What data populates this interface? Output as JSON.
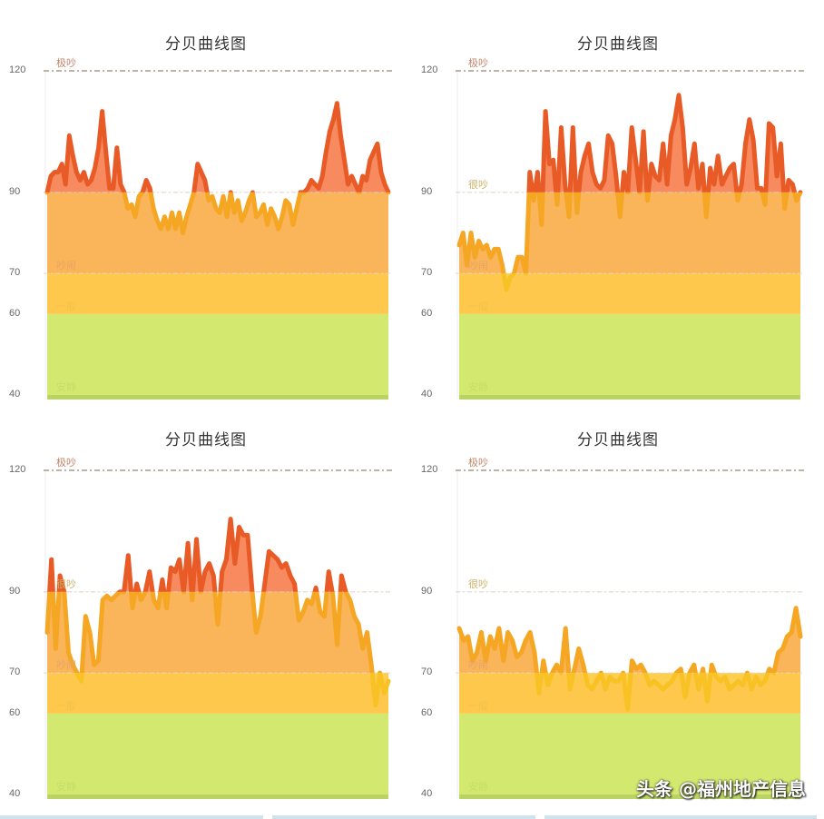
{
  "colors": {
    "zone_quiet": "#d2e86e",
    "zone_quiet_base": "#b9d464",
    "zone_normal": "#fece4e",
    "zone_noisy": "#fab45a",
    "zone_very_noisy_fill": "#f78a5e",
    "line_over90": "#e85a26",
    "line_70_90": "#f5a623",
    "line_under70": "#f8c224",
    "label_extreme": "#c0876c",
    "label_very": "#c9b16a",
    "label_noisy": "#e8a564",
    "label_normal": "#f0c24c",
    "label_quiet": "#c7de6a"
  },
  "zone_labels": {
    "extreme": "极吵",
    "very": "很吵",
    "noisy": "吵闹",
    "normal": "一般",
    "quiet": "安静"
  },
  "y_ticks": [
    "120",
    "90",
    "70",
    "60",
    "40"
  ],
  "watermark": "头条 @福州地产信息",
  "chart_data": [
    {
      "type": "area",
      "title": "分贝曲线图",
      "ylim": [
        38,
        120
      ],
      "y_ticks": [
        120,
        90,
        70,
        60,
        40
      ],
      "bands": [
        {
          "name": "安静",
          "from": 38,
          "to": 60
        },
        {
          "name": "一般",
          "from": 60,
          "to": 70
        },
        {
          "name": "吵闹",
          "from": 70,
          "to": 90
        },
        {
          "name": "很吵",
          "from": 90,
          "to": 120
        },
        {
          "name": "极吵",
          "from": 120,
          "to": 120
        }
      ],
      "values": [
        90,
        94,
        95,
        95,
        97,
        92,
        104,
        99,
        95,
        93,
        95,
        92,
        93,
        96,
        101,
        110,
        100,
        91,
        91,
        101,
        92,
        90,
        86,
        87,
        84,
        89,
        90,
        93,
        91,
        86,
        83,
        81,
        84,
        81,
        85,
        81,
        85,
        80,
        84,
        87,
        90,
        97,
        95,
        93,
        88,
        89,
        86,
        85,
        89,
        84,
        90,
        85,
        88,
        83,
        85,
        88,
        90,
        84,
        85,
        87,
        82,
        86,
        84,
        81,
        84,
        88,
        87,
        82,
        86,
        90,
        90,
        91,
        93,
        92,
        91,
        94,
        100,
        105,
        108,
        112,
        104,
        98,
        92,
        94,
        92,
        90,
        94,
        93,
        98,
        100,
        102,
        95,
        92,
        90
      ]
    },
    {
      "type": "area",
      "title": "分贝曲线图",
      "ylim": [
        38,
        120
      ],
      "y_ticks": [
        120,
        90,
        70,
        60,
        40
      ],
      "values": [
        77,
        80,
        72,
        80,
        74,
        78,
        76,
        77,
        74,
        76,
        76,
        72,
        66,
        69,
        70,
        74,
        74,
        70,
        95,
        88,
        95,
        82,
        110,
        97,
        98,
        87,
        106,
        92,
        84,
        106,
        85,
        95,
        99,
        102,
        95,
        92,
        91,
        93,
        104,
        102,
        94,
        84,
        95,
        90,
        106,
        98,
        90,
        105,
        88,
        97,
        94,
        93,
        102,
        92,
        104,
        108,
        114,
        106,
        92,
        96,
        102,
        91,
        97,
        84,
        96,
        92,
        99,
        92,
        94,
        96,
        97,
        88,
        92,
        102,
        108,
        103,
        91,
        91,
        87,
        107,
        106,
        94,
        102,
        86,
        93,
        92,
        88,
        90
      ]
    },
    {
      "type": "area",
      "title": "分贝曲线图",
      "ylim": [
        38,
        120
      ],
      "y_ticks": [
        120,
        90,
        70,
        60,
        40
      ],
      "values": [
        80,
        98,
        76,
        94,
        90,
        75,
        72,
        70,
        68,
        84,
        80,
        72,
        73,
        88,
        89,
        88,
        89,
        90,
        90,
        99,
        86,
        92,
        88,
        90,
        95,
        88,
        86,
        93,
        86,
        96,
        95,
        98,
        90,
        102,
        88,
        103,
        90,
        95,
        97,
        94,
        82,
        95,
        98,
        108,
        97,
        106,
        104,
        104,
        91,
        80,
        84,
        92,
        100,
        99,
        98,
        96,
        97,
        94,
        92,
        83,
        85,
        88,
        87,
        91,
        85,
        84,
        95,
        89,
        77,
        94,
        90,
        88,
        84,
        82,
        76,
        80,
        72,
        62,
        70,
        65,
        68
      ]
    },
    {
      "type": "area",
      "title": "分贝曲线图",
      "ylim": [
        38,
        120
      ],
      "y_ticks": [
        120,
        90,
        70,
        60,
        40
      ],
      "values": [
        81,
        78,
        79,
        73,
        75,
        80,
        73,
        79,
        76,
        81,
        73,
        80,
        78,
        74,
        75,
        78,
        80,
        75,
        65,
        73,
        67,
        70,
        72,
        70,
        81,
        66,
        71,
        76,
        72,
        67,
        66,
        68,
        70,
        66,
        69,
        68,
        68,
        70,
        61,
        73,
        71,
        72,
        70,
        67,
        68,
        67,
        66,
        67,
        68,
        70,
        71,
        64,
        70,
        72,
        66,
        71,
        63,
        72,
        69,
        68,
        69,
        66,
        67,
        68,
        67,
        70,
        66,
        69,
        67,
        68,
        71,
        70,
        75,
        76,
        79,
        80,
        86,
        79
      ]
    }
  ]
}
